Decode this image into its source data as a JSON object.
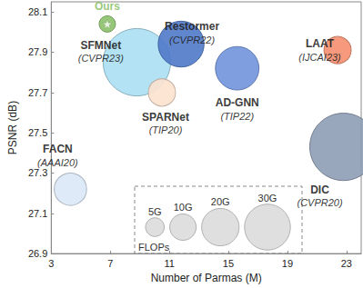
{
  "chart_data": {
    "type": "bubble",
    "x_label": "Number of Parmas (M)",
    "y_label": "PSNR (dB)",
    "xlim": [
      3,
      24
    ],
    "xticks": [
      3,
      7,
      11,
      15,
      19,
      23
    ],
    "ylim": [
      26.9,
      28.15
    ],
    "yticks": [
      26.9,
      27.1,
      27.3,
      27.5,
      27.7,
      27.9,
      28.1
    ],
    "grid": false,
    "points": [
      {
        "name": "SFMNet",
        "venue": "(CVPR23)",
        "x": 8.8,
        "y": 27.85,
        "flops": 65,
        "color": "#aadff3"
      },
      {
        "name": "Restormer",
        "venue": "(CVPR22)",
        "x": 11.8,
        "y": 27.94,
        "flops": 30,
        "color": "#4f79c9"
      },
      {
        "name": "SPARNet",
        "venue": "(TIP20)",
        "x": 10.5,
        "y": 27.7,
        "flops": 10.6,
        "color": "#fde2cf"
      },
      {
        "name": "AD-GNN",
        "venue": "(TIP22)",
        "x": 15.6,
        "y": 27.82,
        "flops": 27,
        "color": "#7194dd"
      },
      {
        "name": "LAAT",
        "venue": "(IJCAI23)",
        "x": 22.4,
        "y": 27.91,
        "flops": 10.6,
        "color": "#f58e6e"
      },
      {
        "name": "FACN",
        "venue": "(AAAI20)",
        "x": 4.3,
        "y": 27.22,
        "flops": 15,
        "color": "#dbe8f7"
      },
      {
        "name": "DIC",
        "venue": "(CVPR20)",
        "x": 22.8,
        "y": 27.43,
        "flops": 65,
        "color": "#8e9db5"
      },
      {
        "name": "Ours",
        "x": 6.8,
        "y": 28.04,
        "flops": 3.8,
        "color": "#8cc26a",
        "marker": "star"
      }
    ],
    "size_legend": {
      "title": "FLOPs",
      "values": [
        {
          "value": 5,
          "label": "5G"
        },
        {
          "value": 10,
          "label": "10G"
        },
        {
          "value": 20,
          "label": "20G"
        },
        {
          "value": 30,
          "label": "30G"
        }
      ]
    }
  }
}
